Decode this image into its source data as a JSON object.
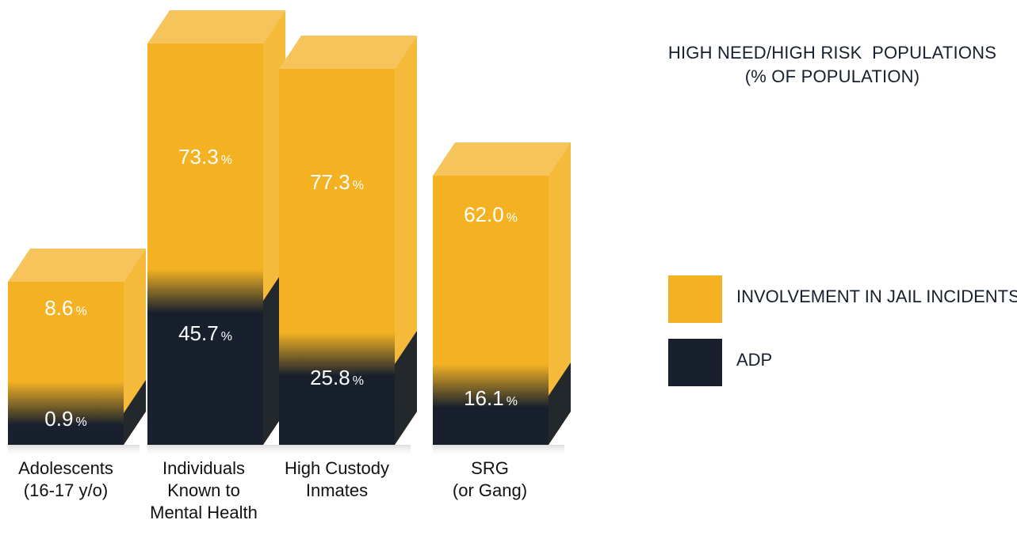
{
  "chart_data": {
    "type": "bar",
    "title_lines": [
      "HIGH NEED/HIGH RISK  POPULATIONS",
      "(% OF POPULATION)"
    ],
    "categories": [
      [
        "Adolescents",
        "(16-17 y/o)"
      ],
      [
        "Individuals",
        "Known to",
        "Mental Health"
      ],
      [
        "High Custody",
        "Inmates"
      ],
      [
        "SRG",
        "(or Gang)"
      ]
    ],
    "series": [
      {
        "name": "INVOLVEMENT IN JAIL INCIDENTS",
        "color": "#f4b223",
        "values": [
          8.6,
          73.3,
          77.3,
          62.0
        ],
        "labels": [
          "8.6",
          "73.3",
          "77.3",
          "62.0"
        ]
      },
      {
        "name": "ADP",
        "color": "#17202c",
        "values": [
          0.9,
          45.7,
          25.8,
          16.1
        ],
        "labels": [
          "0.9",
          "45.7",
          "25.8",
          "16.1"
        ]
      }
    ],
    "value_suffix": "%",
    "legend_position": "right",
    "grid": false
  }
}
